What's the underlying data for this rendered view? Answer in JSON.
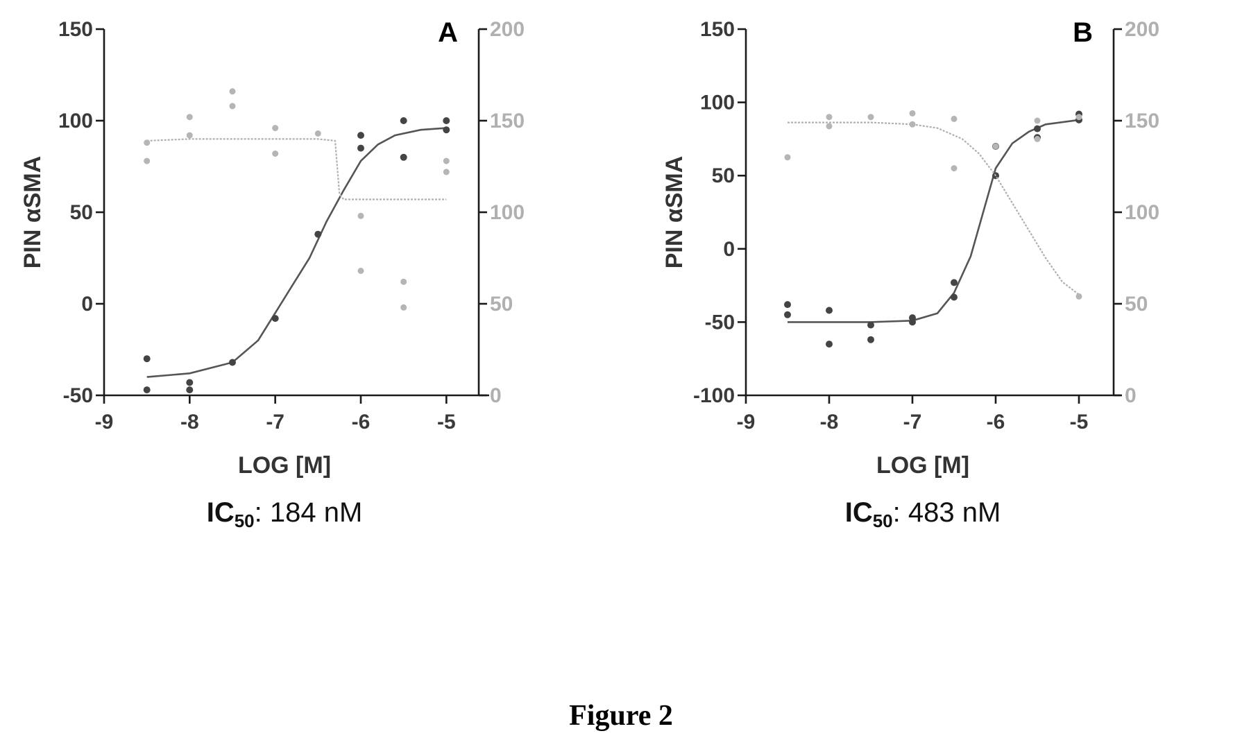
{
  "figure_caption": "Figure 2",
  "chart_data": [
    {
      "type": "scatter",
      "panel": "A",
      "xlabel": "LOG [M]",
      "ylabel": "PIN αSMA",
      "y2label": "",
      "ic50_label": "IC",
      "ic50_subscript": "50",
      "ic50_value": ": 184 nM",
      "xlim": [
        -9,
        -4.5
      ],
      "ylim": [
        -50,
        150
      ],
      "y2lim": [
        0,
        200
      ],
      "xticks": [
        -9,
        -8,
        -7,
        -6,
        -5
      ],
      "yticks": [
        -50,
        0,
        50,
        100,
        150
      ],
      "y2ticks": [
        0,
        50,
        100,
        150,
        200
      ],
      "grid": false,
      "series": [
        {
          "role": "primary",
          "color": "#444444",
          "points": [
            [
              -8.5,
              -47
            ],
            [
              -8.5,
              -30
            ],
            [
              -8.0,
              -47
            ],
            [
              -8.0,
              -43
            ],
            [
              -7.5,
              -32
            ],
            [
              -7.0,
              -8
            ],
            [
              -6.5,
              38
            ],
            [
              -6.0,
              85
            ],
            [
              -6.0,
              92
            ],
            [
              -5.5,
              80
            ],
            [
              -5.5,
              100
            ],
            [
              -5.0,
              95
            ],
            [
              -5.0,
              100
            ]
          ],
          "fit": [
            [
              -8.5,
              -40
            ],
            [
              -8.0,
              -38
            ],
            [
              -7.5,
              -32
            ],
            [
              -7.2,
              -20
            ],
            [
              -7.0,
              -5
            ],
            [
              -6.8,
              10
            ],
            [
              -6.6,
              25
            ],
            [
              -6.4,
              45
            ],
            [
              -6.2,
              62
            ],
            [
              -6.0,
              78
            ],
            [
              -5.8,
              87
            ],
            [
              -5.6,
              92
            ],
            [
              -5.3,
              95
            ],
            [
              -5.0,
              96
            ]
          ]
        },
        {
          "role": "secondary",
          "color": "#b5b5b5",
          "points": [
            [
              -8.5,
              128
            ],
            [
              -8.5,
              138
            ],
            [
              -8.0,
              142
            ],
            [
              -8.0,
              152
            ],
            [
              -7.5,
              158
            ],
            [
              -7.5,
              166
            ],
            [
              -7.0,
              132
            ],
            [
              -7.0,
              146
            ],
            [
              -6.5,
              143
            ],
            [
              -6.0,
              68
            ],
            [
              -6.0,
              98
            ],
            [
              -5.5,
              48
            ],
            [
              -5.5,
              62
            ],
            [
              -5.0,
              122
            ],
            [
              -5.0,
              128
            ]
          ],
          "fit": [
            [
              -8.5,
              139
            ],
            [
              -8.0,
              140
            ],
            [
              -7.5,
              140
            ],
            [
              -7.0,
              140
            ],
            [
              -6.5,
              140
            ],
            [
              -6.3,
              139
            ],
            [
              -6.25,
              110
            ],
            [
              -6.2,
              107
            ],
            [
              -5.8,
              107
            ],
            [
              -5.0,
              107
            ]
          ]
        }
      ]
    },
    {
      "type": "scatter",
      "panel": "B",
      "xlabel": "LOG [M]",
      "ylabel": "PIN αSMA",
      "y2label": "",
      "ic50_label": "IC",
      "ic50_subscript": "50",
      "ic50_value": ": 483 nM",
      "xlim": [
        -9,
        -4.5
      ],
      "ylim": [
        -100,
        150
      ],
      "y2lim": [
        0,
        200
      ],
      "xticks": [
        -9,
        -8,
        -7,
        -6,
        -5
      ],
      "yticks": [
        -100,
        -50,
        0,
        50,
        100,
        150
      ],
      "y2ticks": [
        0,
        50,
        100,
        150,
        200
      ],
      "grid": false,
      "series": [
        {
          "role": "primary",
          "color": "#444444",
          "points": [
            [
              -8.5,
              -38
            ],
            [
              -8.5,
              -45
            ],
            [
              -8.0,
              -42
            ],
            [
              -8.0,
              -65
            ],
            [
              -7.5,
              -52
            ],
            [
              -7.5,
              -62
            ],
            [
              -7.0,
              -47
            ],
            [
              -7.0,
              -50
            ],
            [
              -6.5,
              -33
            ],
            [
              -6.5,
              -23
            ],
            [
              -6.0,
              50
            ],
            [
              -6.0,
              70
            ],
            [
              -5.5,
              76
            ],
            [
              -5.5,
              82
            ],
            [
              -5.0,
              88
            ],
            [
              -5.0,
              92
            ]
          ],
          "fit": [
            [
              -8.5,
              -50
            ],
            [
              -8.0,
              -50
            ],
            [
              -7.5,
              -50
            ],
            [
              -7.0,
              -49
            ],
            [
              -6.7,
              -44
            ],
            [
              -6.5,
              -30
            ],
            [
              -6.3,
              -5
            ],
            [
              -6.1,
              35
            ],
            [
              -6.0,
              55
            ],
            [
              -5.8,
              72
            ],
            [
              -5.6,
              80
            ],
            [
              -5.4,
              85
            ],
            [
              -5.0,
              88
            ]
          ]
        },
        {
          "role": "secondary",
          "color": "#b5b5b5",
          "points": [
            [
              -8.5,
              130
            ],
            [
              -8.0,
              147
            ],
            [
              -8.0,
              152
            ],
            [
              -7.5,
              152
            ],
            [
              -7.0,
              148
            ],
            [
              -7.0,
              154
            ],
            [
              -6.5,
              151
            ],
            [
              -6.5,
              124
            ],
            [
              -6.0,
              136
            ],
            [
              -5.5,
              140
            ],
            [
              -5.5,
              150
            ],
            [
              -5.0,
              152
            ],
            [
              -5.0,
              54
            ]
          ],
          "fit": [
            [
              -8.5,
              149
            ],
            [
              -8.0,
              149
            ],
            [
              -7.5,
              149
            ],
            [
              -7.0,
              148
            ],
            [
              -6.7,
              146
            ],
            [
              -6.4,
              140
            ],
            [
              -6.2,
              132
            ],
            [
              -6.0,
              120
            ],
            [
              -5.8,
              105
            ],
            [
              -5.6,
              90
            ],
            [
              -5.4,
              75
            ],
            [
              -5.2,
              62
            ],
            [
              -5.0,
              55
            ]
          ]
        }
      ]
    }
  ]
}
